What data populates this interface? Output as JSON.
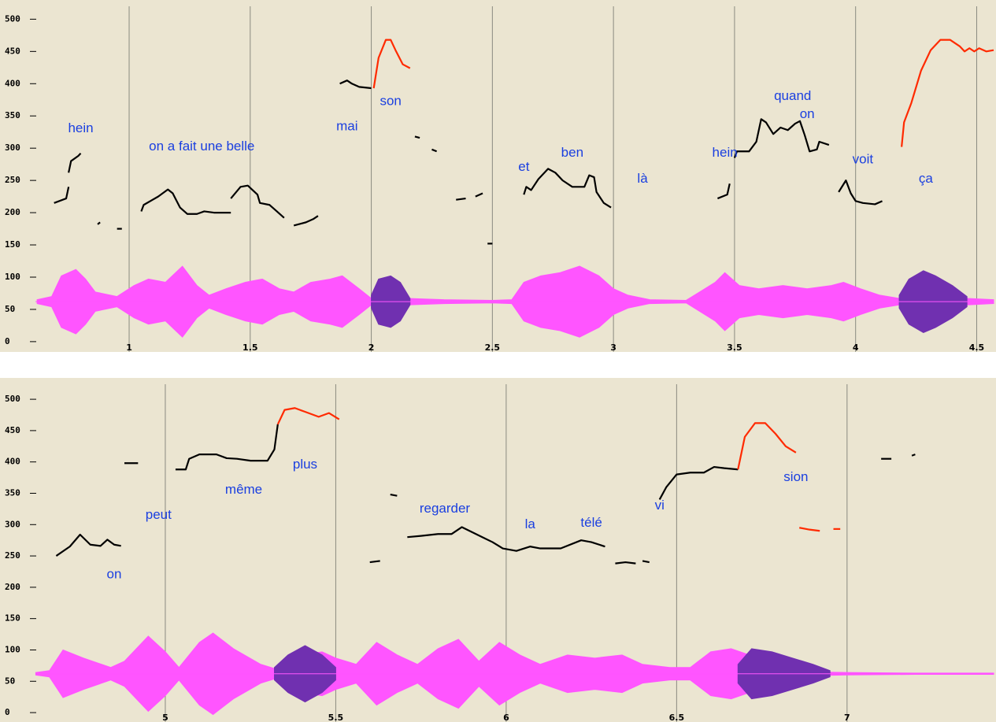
{
  "chart_data": [
    {
      "type": "line",
      "xlim": [
        0.613,
        4.57
      ],
      "ylim": [
        -16,
        520
      ],
      "xticks": [
        1,
        1.5,
        2,
        2.5,
        3,
        3.5,
        4,
        4.5
      ],
      "yticks": [
        0,
        50,
        100,
        150,
        200,
        250,
        300,
        350,
        400,
        450,
        500
      ],
      "grid": true,
      "series": [
        {
          "color": "#000000",
          "x": [
            0.69,
            0.74,
            0.75,
            null,
            0.75,
            0.76,
            0.79,
            0.8,
            null,
            0.87,
            0.88,
            null,
            0.95,
            0.97,
            null,
            1.05,
            1.06,
            1.12,
            1.16,
            1.18,
            1.21,
            1.24,
            1.28,
            1.31,
            1.35,
            1.42,
            null,
            1.42,
            1.46,
            1.49,
            1.53,
            1.54,
            1.58,
            1.61,
            1.64,
            null,
            1.68,
            1.7,
            1.73,
            1.76,
            1.78,
            null,
            1.87,
            1.9,
            1.92,
            1.95,
            2.0,
            null,
            2.18,
            2.2,
            null,
            2.25,
            2.27,
            null,
            2.35,
            2.39,
            null,
            2.43,
            2.46,
            null,
            2.48,
            2.5,
            null,
            2.63,
            2.64,
            2.66,
            2.69,
            2.73,
            2.76,
            2.79,
            2.83,
            2.88,
            2.9,
            2.92,
            2.93,
            2.96,
            2.99,
            null,
            3.43,
            3.47,
            3.48,
            null,
            3.5,
            3.51,
            3.56,
            3.59,
            3.61,
            3.63,
            3.66,
            3.69,
            3.72,
            3.75,
            3.77,
            3.79,
            3.81,
            3.84,
            3.85,
            3.89,
            null,
            3.93,
            3.96,
            3.98,
            4.0,
            4.03,
            4.08,
            4.11
          ],
          "values": [
            215,
            222,
            240,
            null,
            262,
            280,
            288,
            292,
            null,
            182,
            185,
            null,
            175,
            175,
            null,
            202,
            212,
            225,
            236,
            230,
            208,
            198,
            198,
            202,
            200,
            200,
            null,
            222,
            240,
            242,
            228,
            215,
            212,
            202,
            192,
            null,
            180,
            182,
            185,
            190,
            195,
            null,
            400,
            405,
            400,
            395,
            393,
            null,
            318,
            316,
            null,
            298,
            295,
            null,
            220,
            222,
            null,
            225,
            230,
            null,
            152,
            152,
            null,
            228,
            240,
            235,
            252,
            268,
            262,
            250,
            240,
            240,
            258,
            255,
            232,
            215,
            208,
            null,
            222,
            228,
            245,
            null,
            285,
            295,
            295,
            310,
            345,
            340,
            322,
            332,
            328,
            338,
            342,
            320,
            295,
            298,
            310,
            305,
            null,
            232,
            250,
            230,
            218,
            215,
            213,
            218
          ]
        },
        {
          "color": "#ff2a00",
          "x": [
            2.01,
            2.03,
            2.06,
            2.08,
            2.1,
            2.13,
            2.16,
            null,
            4.19,
            4.2,
            4.23,
            4.27,
            4.31,
            4.35,
            4.39,
            4.43,
            4.45,
            4.47,
            4.49,
            4.51,
            4.54,
            4.57
          ],
          "values": [
            393,
            440,
            468,
            468,
            452,
            430,
            424,
            null,
            302,
            340,
            370,
            420,
            452,
            468,
            468,
            458,
            450,
            455,
            450,
            455,
            450,
            452
          ]
        }
      ],
      "baseline": 62,
      "envelope": [
        {
          "color": "#ff55ff",
          "x": [
            0.62,
            0.68,
            0.72,
            0.78,
            0.82,
            0.86,
            0.95,
            1.02,
            1.08,
            1.15,
            1.22,
            1.28,
            1.33,
            1.4,
            1.48,
            1.55,
            1.62,
            1.68,
            1.75,
            1.83,
            1.88,
            1.95,
            2.0,
            2.15,
            2.3,
            2.5,
            2.58,
            2.63,
            2.7,
            2.78,
            2.86,
            2.94,
            3.0,
            3.06,
            3.15,
            3.3,
            3.42,
            3.46,
            3.52,
            3.6,
            3.7,
            3.8,
            3.9,
            3.95,
            4.02,
            4.1,
            4.18,
            4.46,
            4.57
          ],
          "values": [
            3,
            8,
            40,
            50,
            35,
            15,
            8,
            25,
            35,
            30,
            55,
            25,
            10,
            20,
            30,
            35,
            20,
            15,
            30,
            35,
            40,
            20,
            5,
            5,
            3,
            2,
            3,
            30,
            40,
            45,
            55,
            40,
            20,
            10,
            3,
            2,
            30,
            45,
            25,
            20,
            25,
            20,
            25,
            30,
            20,
            10,
            5,
            5,
            3
          ]
        },
        {
          "color": "#7030b0",
          "x": [
            2.0,
            2.03,
            2.08,
            2.12,
            2.16,
            null,
            4.18,
            4.22,
            4.28,
            4.33,
            4.4,
            4.46
          ],
          "values": [
            10,
            35,
            40,
            30,
            5,
            null,
            10,
            35,
            48,
            40,
            25,
            8
          ]
        }
      ],
      "annotations": [
        {
          "text": "hein",
          "x": 0.8,
          "y": 330
        },
        {
          "text": "on a fait une belle",
          "x": 1.3,
          "y": 302
        },
        {
          "text": "mai",
          "x": 1.9,
          "y": 333
        },
        {
          "text": "son",
          "x": 2.08,
          "y": 372
        },
        {
          "text": "et",
          "x": 2.63,
          "y": 270
        },
        {
          "text": "ben",
          "x": 2.83,
          "y": 292
        },
        {
          "text": "là",
          "x": 3.12,
          "y": 252
        },
        {
          "text": "hein",
          "x": 3.46,
          "y": 292
        },
        {
          "text": "quand",
          "x": 3.74,
          "y": 380
        },
        {
          "text": "on",
          "x": 3.8,
          "y": 352
        },
        {
          "text": "voit",
          "x": 4.03,
          "y": 282
        },
        {
          "text": "ça",
          "x": 4.29,
          "y": 252
        }
      ]
    },
    {
      "type": "line",
      "xlim": [
        4.619,
        7.43
      ],
      "ylim": [
        -15,
        524
      ],
      "xticks": [
        5,
        5.5,
        6,
        6.5,
        7
      ],
      "yticks": [
        0,
        50,
        100,
        150,
        200,
        250,
        300,
        350,
        400,
        450,
        500
      ],
      "grid": true,
      "series": [
        {
          "color": "#000000",
          "x": [
            4.68,
            4.72,
            4.75,
            4.78,
            4.81,
            4.83,
            4.85,
            4.87,
            null,
            4.88,
            4.92,
            null,
            5.03,
            5.06,
            5.07,
            5.1,
            5.15,
            5.18,
            5.21,
            5.25,
            5.3,
            5.32,
            5.33,
            null,
            5.6,
            5.63,
            null,
            5.66,
            5.68,
            null,
            5.71,
            5.75,
            5.8,
            5.84,
            5.87,
            5.9,
            5.93,
            5.96,
            5.99,
            6.03,
            6.07,
            6.1,
            6.16,
            6.22,
            6.25,
            6.29,
            null,
            6.32,
            6.35,
            6.38,
            null,
            6.4,
            6.42,
            null,
            6.45,
            6.47,
            6.5,
            6.54,
            6.58,
            6.61,
            6.64,
            6.68,
            null,
            7.1,
            7.13,
            null,
            7.19,
            7.2
          ],
          "values": [
            250,
            265,
            284,
            268,
            266,
            276,
            268,
            266,
            null,
            398,
            398,
            null,
            388,
            388,
            405,
            412,
            412,
            406,
            405,
            402,
            402,
            420,
            460,
            null,
            240,
            242,
            null,
            348,
            346,
            null,
            280,
            282,
            285,
            285,
            296,
            288,
            280,
            272,
            262,
            258,
            265,
            262,
            262,
            275,
            272,
            265,
            null,
            238,
            240,
            238,
            null,
            242,
            240,
            null,
            340,
            360,
            380,
            383,
            383,
            392,
            390,
            388,
            null,
            405,
            405,
            null,
            410,
            412
          ]
        },
        {
          "color": "#ff2a00",
          "x": [
            5.33,
            5.35,
            5.38,
            5.41,
            5.45,
            5.48,
            5.51,
            null,
            6.68,
            6.7,
            6.73,
            6.76,
            6.79,
            6.82,
            6.85,
            null,
            6.86,
            6.89,
            6.92,
            null,
            6.96,
            6.98
          ],
          "values": [
            460,
            483,
            486,
            480,
            472,
            478,
            468,
            null,
            388,
            440,
            462,
            462,
            445,
            425,
            415,
            null,
            295,
            292,
            290,
            null,
            293,
            293
          ]
        }
      ],
      "baseline": 62,
      "envelope": [
        {
          "color": "#ff55ff",
          "x": [
            4.62,
            4.66,
            4.7,
            4.76,
            4.84,
            4.88,
            4.95,
            5.0,
            5.04,
            5.1,
            5.14,
            5.2,
            5.28,
            5.34,
            5.4,
            5.46,
            5.5,
            5.56,
            5.62,
            5.68,
            5.74,
            5.8,
            5.86,
            5.92,
            5.98,
            6.04,
            6.1,
            6.18,
            6.26,
            6.34,
            6.4,
            6.48,
            6.54,
            6.6,
            6.66,
            6.74,
            6.8,
            6.9,
            7.0,
            7.2,
            7.43
          ],
          "values": [
            2,
            5,
            38,
            25,
            10,
            20,
            60,
            35,
            10,
            50,
            65,
            40,
            15,
            5,
            30,
            35,
            25,
            15,
            50,
            30,
            15,
            40,
            55,
            20,
            50,
            30,
            15,
            30,
            25,
            30,
            15,
            10,
            10,
            35,
            40,
            25,
            5,
            3,
            2,
            1,
            1
          ]
        },
        {
          "color": "#7030b0",
          "x": [
            5.32,
            5.36,
            5.41,
            5.46,
            5.5,
            null,
            6.68,
            6.72,
            6.78,
            6.84,
            6.9,
            6.95
          ],
          "values": [
            10,
            30,
            45,
            30,
            10,
            null,
            15,
            40,
            35,
            25,
            15,
            5
          ]
        }
      ],
      "annotations": [
        {
          "text": "on",
          "x": 4.85,
          "y": 220
        },
        {
          "text": "peut",
          "x": 4.98,
          "y": 315
        },
        {
          "text": "même",
          "x": 5.23,
          "y": 355
        },
        {
          "text": "plus",
          "x": 5.41,
          "y": 395
        },
        {
          "text": "regarder",
          "x": 5.82,
          "y": 325
        },
        {
          "text": "la",
          "x": 6.07,
          "y": 300
        },
        {
          "text": "télé",
          "x": 6.25,
          "y": 302
        },
        {
          "text": "vi",
          "x": 6.45,
          "y": 330
        },
        {
          "text": "sion",
          "x": 6.85,
          "y": 375
        }
      ]
    }
  ]
}
